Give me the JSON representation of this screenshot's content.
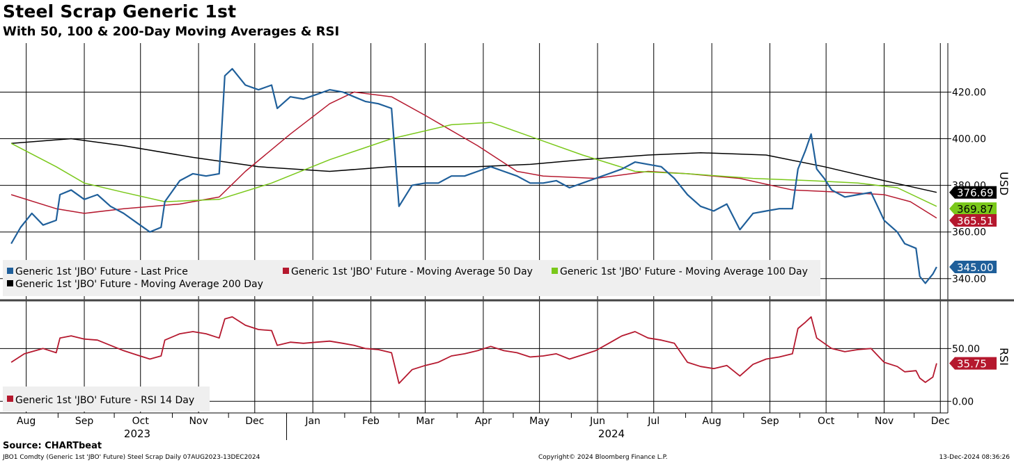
{
  "header": {
    "title": "Steel Scrap Generic 1st",
    "subtitle": "With 50, 100 & 200-Day Moving Averages & RSI"
  },
  "footer": {
    "source": "Source: CHARTbeat",
    "description": "JBO1 Comdty (Generic 1st 'JBO' Future) Steel Scrap  Daily 07AUG2023-13DEC2024",
    "copyright": "Copyright© 2024 Bloomberg Finance L.P.",
    "timestamp": "13-Dec-2024 08:36:26"
  },
  "colors": {
    "price": "#1f5f9a",
    "ma50": "#b5182e",
    "ma100": "#7ac81a",
    "ma200": "#000000",
    "rsi": "#b5182e",
    "grid": "#000000"
  },
  "chart_data": [
    {
      "type": "line",
      "ylabel": "USD",
      "ylim": [
        331,
        441
      ],
      "yticks": [
        "340.00",
        "360.00",
        "380.00",
        "400.00",
        "420.00"
      ],
      "x_axis": {
        "months": [
          "Aug",
          "Sep",
          "Oct",
          "Nov",
          "Dec",
          "Jan",
          "Feb",
          "Mar",
          "Apr",
          "May",
          "Jun",
          "Jul",
          "Aug",
          "Sep",
          "Oct",
          "Nov",
          "Dec"
        ],
        "years": [
          "2023",
          "2024"
        ],
        "range": [
          "2023-08-07",
          "2024-12-13"
        ]
      },
      "legend_placement": "bottom-left",
      "series": [
        {
          "name": "Generic 1st 'JBO' Future - Last Price",
          "color_key": "price",
          "last_label": "345.00",
          "points": [
            [
              "2023-08-07",
              355
            ],
            [
              "2023-08-12",
              362
            ],
            [
              "2023-08-18",
              368
            ],
            [
              "2023-08-24",
              363
            ],
            [
              "2023-08-31",
              365
            ],
            [
              "2023-09-02",
              376
            ],
            [
              "2023-09-08",
              378
            ],
            [
              "2023-09-15",
              374
            ],
            [
              "2023-09-22",
              376
            ],
            [
              "2023-09-29",
              371
            ],
            [
              "2023-10-06",
              368
            ],
            [
              "2023-10-13",
              364
            ],
            [
              "2023-10-20",
              360
            ],
            [
              "2023-10-26",
              362
            ],
            [
              "2023-10-28",
              373
            ],
            [
              "2023-11-05",
              382
            ],
            [
              "2023-11-12",
              385
            ],
            [
              "2023-11-19",
              384
            ],
            [
              "2023-11-26",
              385
            ],
            [
              "2023-11-29",
              427
            ],
            [
              "2023-12-03",
              430
            ],
            [
              "2023-12-10",
              423
            ],
            [
              "2023-12-17",
              421
            ],
            [
              "2023-12-24",
              423
            ],
            [
              "2023-12-27",
              413
            ],
            [
              "2024-01-03",
              418
            ],
            [
              "2024-01-10",
              417
            ],
            [
              "2024-01-17",
              419
            ],
            [
              "2024-01-24",
              421
            ],
            [
              "2024-01-31",
              420
            ],
            [
              "2024-02-06",
              418
            ],
            [
              "2024-02-12",
              416
            ],
            [
              "2024-02-19",
              415
            ],
            [
              "2024-02-26",
              413
            ],
            [
              "2024-03-01",
              371
            ],
            [
              "2024-03-08",
              380
            ],
            [
              "2024-03-15",
              381
            ],
            [
              "2024-03-22",
              381
            ],
            [
              "2024-03-29",
              384
            ],
            [
              "2024-04-05",
              384
            ],
            [
              "2024-04-12",
              386
            ],
            [
              "2024-04-19",
              388
            ],
            [
              "2024-04-26",
              386
            ],
            [
              "2024-05-03",
              384
            ],
            [
              "2024-05-10",
              381
            ],
            [
              "2024-05-17",
              381
            ],
            [
              "2024-05-24",
              382
            ],
            [
              "2024-05-31",
              379
            ],
            [
              "2024-06-07",
              381
            ],
            [
              "2024-06-14",
              383
            ],
            [
              "2024-06-21",
              385
            ],
            [
              "2024-06-28",
              387
            ],
            [
              "2024-07-05",
              390
            ],
            [
              "2024-07-12",
              389
            ],
            [
              "2024-07-19",
              388
            ],
            [
              "2024-07-26",
              383
            ],
            [
              "2024-08-02",
              376
            ],
            [
              "2024-08-09",
              371
            ],
            [
              "2024-08-16",
              369
            ],
            [
              "2024-08-23",
              372
            ],
            [
              "2024-08-30",
              361
            ],
            [
              "2024-09-06",
              368
            ],
            [
              "2024-09-13",
              369
            ],
            [
              "2024-09-20",
              370
            ],
            [
              "2024-09-27",
              370
            ],
            [
              "2024-09-30",
              387
            ],
            [
              "2024-10-04",
              395
            ],
            [
              "2024-10-07",
              402
            ],
            [
              "2024-10-10",
              387
            ],
            [
              "2024-10-14",
              383
            ],
            [
              "2024-10-18",
              378
            ],
            [
              "2024-10-25",
              375
            ],
            [
              "2024-11-01",
              376
            ],
            [
              "2024-11-08",
              377
            ],
            [
              "2024-11-15",
              365
            ],
            [
              "2024-11-22",
              360
            ],
            [
              "2024-11-26",
              355
            ],
            [
              "2024-12-02",
              353
            ],
            [
              "2024-12-04",
              341
            ],
            [
              "2024-12-07",
              338
            ],
            [
              "2024-12-11",
              342
            ],
            [
              "2024-12-13",
              345
            ]
          ]
        },
        {
          "name": "Generic 1st 'JBO' Future - Moving Average 50 Day",
          "color_key": "ma50",
          "last_label": "365.51",
          "points": [
            [
              "2023-08-07",
              376
            ],
            [
              "2023-08-31",
              370
            ],
            [
              "2023-09-15",
              368
            ],
            [
              "2023-10-06",
              370
            ],
            [
              "2023-11-05",
              372
            ],
            [
              "2023-11-26",
              375
            ],
            [
              "2023-12-10",
              386
            ],
            [
              "2024-01-03",
              402
            ],
            [
              "2024-01-24",
              415
            ],
            [
              "2024-02-06",
              420
            ],
            [
              "2024-02-26",
              418
            ],
            [
              "2024-03-15",
              410
            ],
            [
              "2024-04-12",
              397
            ],
            [
              "2024-05-03",
              386
            ],
            [
              "2024-05-17",
              384
            ],
            [
              "2024-06-14",
              383
            ],
            [
              "2024-07-12",
              386
            ],
            [
              "2024-08-02",
              385
            ],
            [
              "2024-08-30",
              383
            ],
            [
              "2024-09-27",
              378
            ],
            [
              "2024-10-25",
              377
            ],
            [
              "2024-11-15",
              376
            ],
            [
              "2024-11-29",
              373
            ],
            [
              "2024-12-13",
              366
            ]
          ]
        },
        {
          "name": "Generic 1st 'JBO' Future - Moving Average 100 Day",
          "color_key": "ma100",
          "last_label": "369.87",
          "points": [
            [
              "2023-08-07",
              398
            ],
            [
              "2023-08-31",
              388
            ],
            [
              "2023-09-15",
              381
            ],
            [
              "2023-10-06",
              377
            ],
            [
              "2023-10-28",
              373
            ],
            [
              "2023-11-26",
              374
            ],
            [
              "2023-12-24",
              381
            ],
            [
              "2024-01-24",
              391
            ],
            [
              "2024-02-26",
              400
            ],
            [
              "2024-03-29",
              406
            ],
            [
              "2024-04-19",
              407
            ],
            [
              "2024-05-10",
              401
            ],
            [
              "2024-06-07",
              393
            ],
            [
              "2024-07-05",
              386
            ],
            [
              "2024-08-02",
              385
            ],
            [
              "2024-09-06",
              383
            ],
            [
              "2024-10-07",
              382
            ],
            [
              "2024-11-01",
              381
            ],
            [
              "2024-11-22",
              379
            ],
            [
              "2024-12-13",
              371
            ]
          ]
        },
        {
          "name": "Generic 1st 'JBO' Future - Moving Average 200 Day",
          "color_key": "ma200",
          "last_label": "376.69",
          "points": [
            [
              "2023-08-07",
              398
            ],
            [
              "2023-09-08",
              400
            ],
            [
              "2023-10-06",
              397
            ],
            [
              "2023-11-12",
              392
            ],
            [
              "2023-12-17",
              388
            ],
            [
              "2024-01-24",
              386
            ],
            [
              "2024-02-26",
              388
            ],
            [
              "2024-04-12",
              388
            ],
            [
              "2024-05-10",
              389
            ],
            [
              "2024-06-07",
              391
            ],
            [
              "2024-07-12",
              393
            ],
            [
              "2024-08-09",
              394
            ],
            [
              "2024-09-13",
              393
            ],
            [
              "2024-10-14",
              388
            ],
            [
              "2024-11-15",
              382
            ],
            [
              "2024-12-13",
              377
            ]
          ]
        }
      ]
    },
    {
      "type": "line",
      "ylabel": "RSI",
      "ylim": [
        -11,
        95
      ],
      "yticks": [
        "0.00",
        "50.00"
      ],
      "legend_placement": "bottom-left",
      "series": [
        {
          "name": "Generic 1st 'JBO' Future - RSI 14 Day",
          "color_key": "rsi",
          "last_label": "35.75",
          "points": [
            [
              "2023-08-07",
              37
            ],
            [
              "2023-08-14",
              45
            ],
            [
              "2023-08-24",
              50
            ],
            [
              "2023-08-31",
              46
            ],
            [
              "2023-09-02",
              60
            ],
            [
              "2023-09-08",
              62
            ],
            [
              "2023-09-15",
              59
            ],
            [
              "2023-09-22",
              58
            ],
            [
              "2023-09-29",
              53
            ],
            [
              "2023-10-06",
              48
            ],
            [
              "2023-10-13",
              44
            ],
            [
              "2023-10-20",
              40
            ],
            [
              "2023-10-26",
              43
            ],
            [
              "2023-10-28",
              58
            ],
            [
              "2023-11-05",
              64
            ],
            [
              "2023-11-12",
              66
            ],
            [
              "2023-11-19",
              64
            ],
            [
              "2023-11-26",
              60
            ],
            [
              "2023-11-29",
              78
            ],
            [
              "2023-12-03",
              80
            ],
            [
              "2023-12-10",
              72
            ],
            [
              "2023-12-17",
              68
            ],
            [
              "2023-12-24",
              67
            ],
            [
              "2023-12-27",
              53
            ],
            [
              "2024-01-03",
              56
            ],
            [
              "2024-01-10",
              55
            ],
            [
              "2024-01-17",
              56
            ],
            [
              "2024-01-24",
              57
            ],
            [
              "2024-01-31",
              55
            ],
            [
              "2024-02-06",
              53
            ],
            [
              "2024-02-12",
              50
            ],
            [
              "2024-02-19",
              49
            ],
            [
              "2024-02-26",
              46
            ],
            [
              "2024-03-01",
              17
            ],
            [
              "2024-03-08",
              30
            ],
            [
              "2024-03-15",
              34
            ],
            [
              "2024-03-22",
              37
            ],
            [
              "2024-03-29",
              43
            ],
            [
              "2024-04-05",
              45
            ],
            [
              "2024-04-12",
              48
            ],
            [
              "2024-04-19",
              52
            ],
            [
              "2024-04-26",
              48
            ],
            [
              "2024-05-03",
              46
            ],
            [
              "2024-05-10",
              42
            ],
            [
              "2024-05-17",
              43
            ],
            [
              "2024-05-24",
              45
            ],
            [
              "2024-05-31",
              40
            ],
            [
              "2024-06-07",
              44
            ],
            [
              "2024-06-14",
              48
            ],
            [
              "2024-06-21",
              55
            ],
            [
              "2024-06-28",
              62
            ],
            [
              "2024-07-05",
              66
            ],
            [
              "2024-07-12",
              60
            ],
            [
              "2024-07-19",
              58
            ],
            [
              "2024-07-26",
              55
            ],
            [
              "2024-08-02",
              37
            ],
            [
              "2024-08-09",
              33
            ],
            [
              "2024-08-16",
              31
            ],
            [
              "2024-08-23",
              34
            ],
            [
              "2024-08-30",
              24
            ],
            [
              "2024-09-06",
              35
            ],
            [
              "2024-09-13",
              40
            ],
            [
              "2024-09-20",
              42
            ],
            [
              "2024-09-27",
              45
            ],
            [
              "2024-09-30",
              69
            ],
            [
              "2024-10-04",
              75
            ],
            [
              "2024-10-07",
              80
            ],
            [
              "2024-10-10",
              60
            ],
            [
              "2024-10-14",
              55
            ],
            [
              "2024-10-18",
              50
            ],
            [
              "2024-10-25",
              47
            ],
            [
              "2024-11-01",
              49
            ],
            [
              "2024-11-08",
              50
            ],
            [
              "2024-11-15",
              37
            ],
            [
              "2024-11-22",
              33
            ],
            [
              "2024-11-26",
              28
            ],
            [
              "2024-12-02",
              29
            ],
            [
              "2024-12-04",
              22
            ],
            [
              "2024-12-07",
              18
            ],
            [
              "2024-12-11",
              23
            ],
            [
              "2024-12-13",
              36
            ]
          ]
        }
      ]
    }
  ]
}
